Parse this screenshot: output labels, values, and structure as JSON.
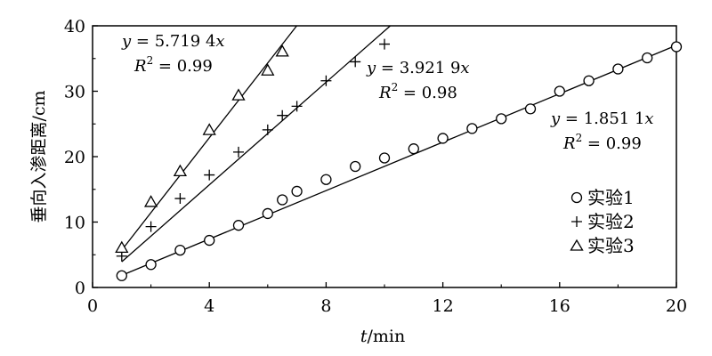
{
  "chart_data": {
    "type": "scatter",
    "xlabel_italic": "t",
    "xlabel_unit": "/min",
    "ylabel": "垂向入渗距离/cm",
    "xlim": [
      0,
      20
    ],
    "ylim": [
      0,
      40
    ],
    "xticks": [
      0,
      4,
      8,
      12,
      16,
      20
    ],
    "yticks": [
      0,
      10,
      20,
      30,
      40
    ],
    "grid": false,
    "legend_position": "right",
    "series": [
      {
        "name": "实验1",
        "marker": "circle",
        "x": [
          1,
          2,
          3,
          4,
          5,
          6,
          6.5,
          7,
          8,
          9,
          10,
          11,
          12,
          13,
          14,
          15,
          16,
          17,
          18,
          19,
          20
        ],
        "y": [
          1.8,
          3.5,
          5.7,
          7.2,
          9.5,
          11.3,
          13.4,
          14.7,
          16.5,
          18.5,
          19.8,
          21.2,
          22.8,
          24.3,
          25.8,
          27.3,
          30.0,
          31.6,
          33.4,
          35.1,
          36.8
        ],
        "fit_slope": 1.8511,
        "fit_range": [
          1,
          20
        ],
        "equation_prefix": "y",
        "equation_value": " = 1.851 1",
        "equation_suffix": "x",
        "r2_label": "R",
        "r2_sup": "2",
        "r2_value": " = 0.99"
      },
      {
        "name": "实验2",
        "marker": "plus",
        "x": [
          1,
          2,
          3,
          4,
          5,
          6,
          6.5,
          7,
          8,
          9,
          10
        ],
        "y": [
          4.8,
          9.3,
          13.6,
          17.2,
          20.7,
          24.1,
          26.3,
          27.7,
          31.6,
          34.5,
          37.2
        ],
        "fit_slope": 3.9219,
        "fit_range": [
          1,
          10
        ],
        "equation_prefix": "y",
        "equation_value": " = 3.921 9",
        "equation_suffix": "x",
        "r2_label": "R",
        "r2_sup": "2",
        "r2_value": " = 0.98"
      },
      {
        "name": "实验3",
        "marker": "triangle",
        "x": [
          1,
          2,
          3,
          4,
          5,
          6,
          6.5
        ],
        "y": [
          6.0,
          13.0,
          17.7,
          24.0,
          29.3,
          33.1,
          36.0
        ],
        "fit_slope": 5.7194,
        "fit_range": [
          1,
          6.5
        ],
        "equation_prefix": "y",
        "equation_value": " = 5.719 4",
        "equation_suffix": "x",
        "r2_label": "R",
        "r2_sup": "2",
        "r2_value": " = 0.99"
      }
    ]
  }
}
